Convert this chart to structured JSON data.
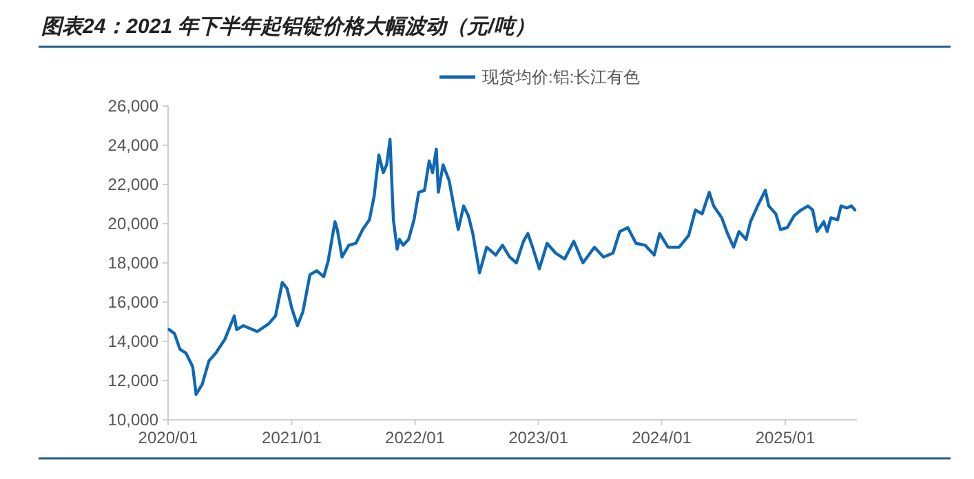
{
  "chart_data": {
    "type": "line",
    "title": "图表24：2021 年下半年起铝锭价格大幅波动（元/吨）",
    "x": [
      "2020-01-04",
      "2020-01-20",
      "2020-02-05",
      "2020-02-23",
      "2020-03-14",
      "2020-03-24",
      "2020-04-11",
      "2020-05-01",
      "2020-05-21",
      "2020-06-17",
      "2020-07-15",
      "2020-07-22",
      "2020-08-11",
      "2020-09-21",
      "2020-10-25",
      "2020-11-14",
      "2020-12-04",
      "2020-12-18",
      "2021-01-01",
      "2021-01-18",
      "2021-02-03",
      "2021-02-24",
      "2021-03-16",
      "2021-04-06",
      "2021-04-19",
      "2021-05-09",
      "2021-05-16",
      "2021-05-30",
      "2021-06-19",
      "2021-07-10",
      "2021-07-30",
      "2021-08-19",
      "2021-09-02",
      "2021-09-16",
      "2021-09-29",
      "2021-10-09",
      "2021-10-19",
      "2021-10-29",
      "2021-11-09",
      "2021-11-16",
      "2021-11-27",
      "2021-12-13",
      "2021-12-29",
      "2022-01-12",
      "2022-01-29",
      "2022-02-12",
      "2022-02-22",
      "2022-03-05",
      "2022-03-11",
      "2022-03-25",
      "2022-04-12",
      "2022-04-28",
      "2022-05-09",
      "2022-05-25",
      "2022-06-08",
      "2022-06-21",
      "2022-07-11",
      "2022-08-01",
      "2022-08-28",
      "2022-09-17",
      "2022-10-08",
      "2022-10-28",
      "2022-11-18",
      "2022-12-01",
      "2022-12-15",
      "2023-01-04",
      "2023-01-27",
      "2023-02-21",
      "2023-03-20",
      "2023-04-16",
      "2023-05-13",
      "2023-06-16",
      "2023-07-13",
      "2023-08-10",
      "2023-08-30",
      "2023-09-23",
      "2023-10-17",
      "2023-11-13",
      "2023-12-10",
      "2023-12-26",
      "2024-01-20",
      "2024-02-22",
      "2024-03-21",
      "2024-04-10",
      "2024-04-30",
      "2024-05-21",
      "2024-06-03",
      "2024-06-27",
      "2024-07-14",
      "2024-08-01",
      "2024-08-17",
      "2024-09-07",
      "2024-09-20",
      "2024-10-11",
      "2024-11-03",
      "2024-11-13",
      "2024-12-04",
      "2024-12-18",
      "2025-01-07",
      "2025-01-27",
      "2025-02-17",
      "2025-03-09",
      "2025-03-23",
      "2025-04-05",
      "2025-04-25",
      "2025-05-05",
      "2025-05-16",
      "2025-06-05",
      "2025-06-15",
      "2025-07-02",
      "2025-07-16",
      "2025-07-26"
    ],
    "series": [
      {
        "name": "现货均价:铝:长江有色",
        "color": "#0f68b4",
        "values": [
          14600,
          14400,
          13600,
          13400,
          12700,
          11300,
          11800,
          13000,
          13400,
          14100,
          15300,
          14600,
          14800,
          14500,
          14900,
          15300,
          17000,
          16700,
          15700,
          14800,
          15500,
          17400,
          17600,
          17300,
          18100,
          20100,
          19700,
          18300,
          18900,
          19000,
          19700,
          20200,
          21400,
          23500,
          22600,
          23000,
          24300,
          20200,
          18700,
          19200,
          18900,
          19200,
          20200,
          21600,
          21700,
          23200,
          22600,
          23800,
          21600,
          23000,
          22200,
          20700,
          19700,
          20900,
          20400,
          19500,
          17500,
          18800,
          18400,
          18900,
          18300,
          18000,
          19100,
          19500,
          18800,
          17700,
          19000,
          18500,
          18200,
          19100,
          18000,
          18800,
          18300,
          18500,
          19600,
          19800,
          19000,
          18900,
          18400,
          19500,
          18800,
          18800,
          19400,
          20700,
          20500,
          21600,
          20900,
          20300,
          19500,
          18800,
          19600,
          19200,
          20100,
          20900,
          21700,
          20900,
          20500,
          19700,
          19800,
          20400,
          20700,
          20900,
          20700,
          19600,
          20100,
          19600,
          20300,
          20200,
          20900,
          20800,
          20900,
          20700
        ]
      }
    ],
    "xlim": [
      "2020-01-01",
      "2025-08-01"
    ],
    "xticks": [
      {
        "value": "2020-01-01",
        "label": "2020/01"
      },
      {
        "value": "2021-01-01",
        "label": "2021/01"
      },
      {
        "value": "2022-01-01",
        "label": "2022/01"
      },
      {
        "value": "2023-01-01",
        "label": "2023/01"
      },
      {
        "value": "2024-01-01",
        "label": "2024/01"
      },
      {
        "value": "2025-01-01",
        "label": "2025/01"
      }
    ],
    "ylim": [
      10000,
      26000
    ],
    "yticks": [
      {
        "value": 10000,
        "label": "10,000"
      },
      {
        "value": 12000,
        "label": "12,000"
      },
      {
        "value": 14000,
        "label": "14,000"
      },
      {
        "value": 16000,
        "label": "16,000"
      },
      {
        "value": 18000,
        "label": "18,000"
      },
      {
        "value": 20000,
        "label": "20,000"
      },
      {
        "value": 22000,
        "label": "22,000"
      },
      {
        "value": 24000,
        "label": "24,000"
      },
      {
        "value": 26000,
        "label": "26,000"
      }
    ],
    "legend": "top",
    "grid": false
  }
}
